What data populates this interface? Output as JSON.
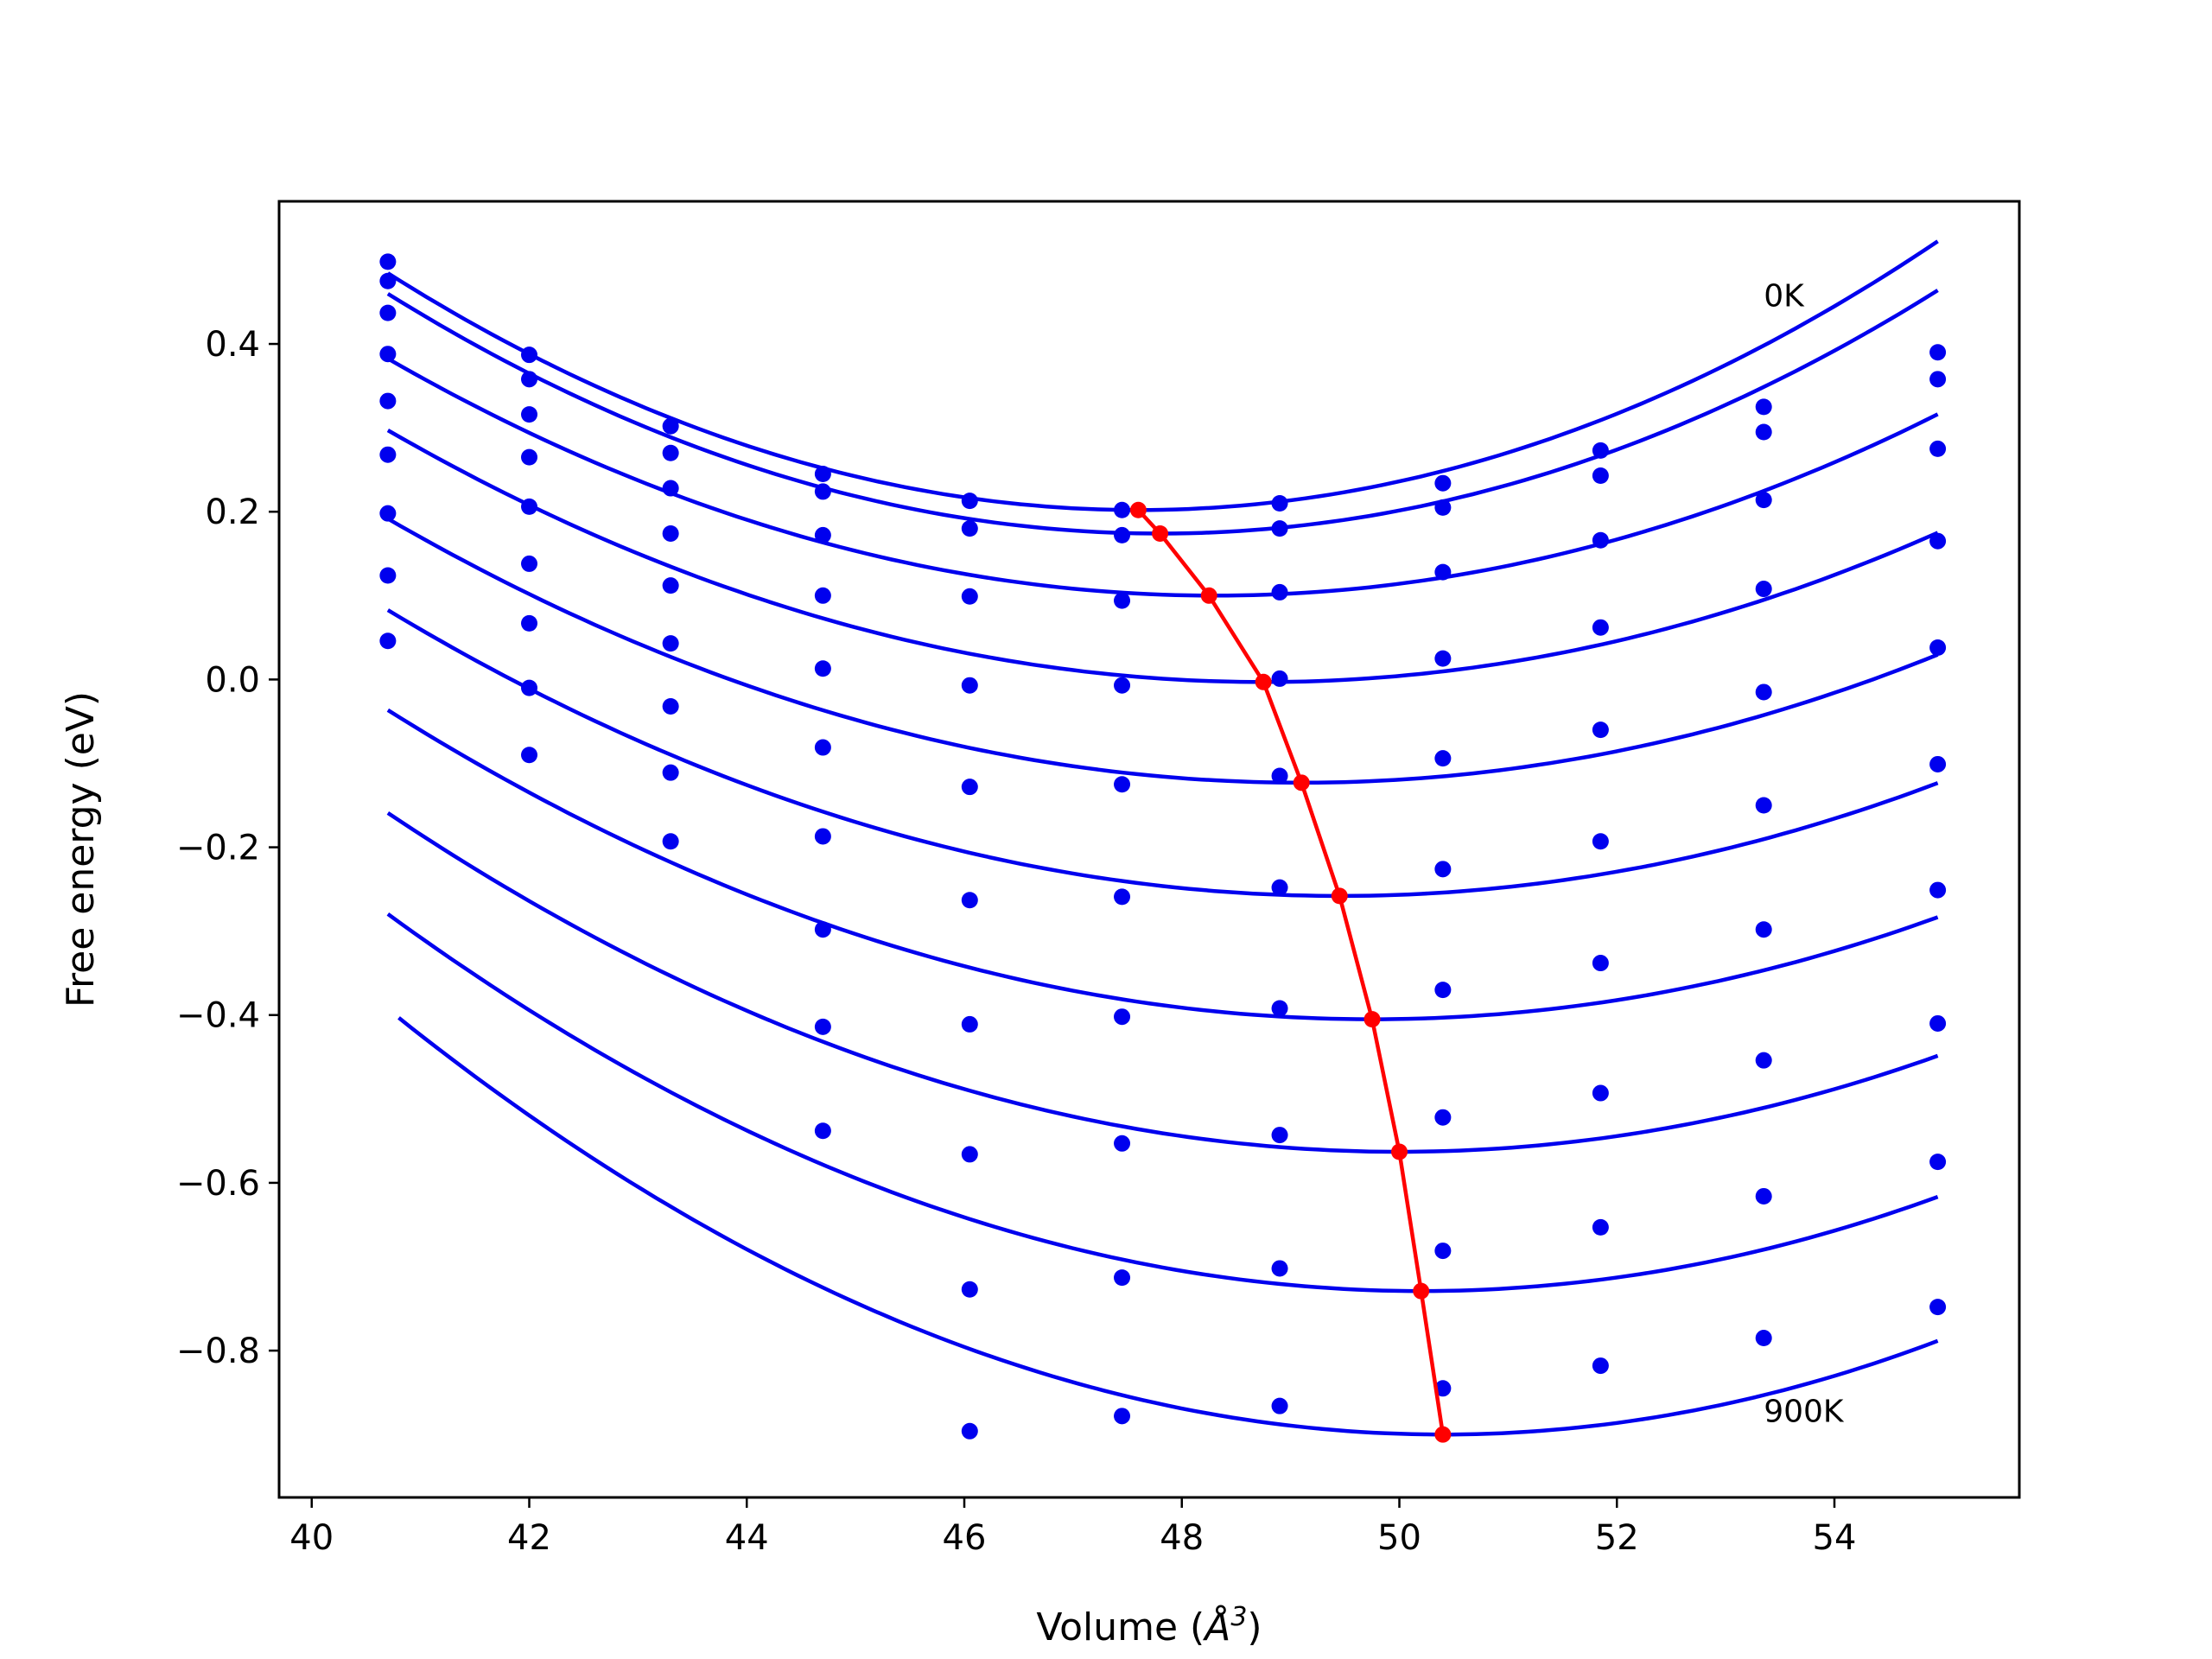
{
  "chart_data": {
    "type": "line",
    "xlabel_prefix": "Volume (",
    "xlabel_unit": "Å",
    "xlabel_exp": "3",
    "xlabel_suffix": ")",
    "ylabel": "Free energy (eV)",
    "xlim": [
      39.7,
      55.7
    ],
    "ylim": [
      -0.975,
      0.57
    ],
    "xticks": [
      40,
      42,
      44,
      46,
      48,
      50,
      52,
      54
    ],
    "yticks": [
      -0.8,
      -0.6,
      -0.4,
      -0.2,
      0.0,
      0.2,
      0.4
    ],
    "ytick_labels": [
      "−0.8",
      "−0.6",
      "−0.4",
      "−0.2",
      "0.0",
      "0.2",
      "0.4"
    ],
    "grid": false,
    "curve_color": "#0000ee",
    "equilibrium_color": "#ff0000",
    "annotations": [
      {
        "text": "0K",
        "x": 53.35,
        "y": 0.445
      },
      {
        "text": "900K",
        "x": 53.35,
        "y": -0.885
      }
    ],
    "sample_volumes": [
      40.7,
      42.0,
      43.3,
      44.7,
      46.05,
      47.45,
      48.9,
      50.4,
      51.85,
      53.35,
      54.95
    ],
    "series": [
      {
        "points": [
          0.498,
          0.387,
          0.302,
          0.245,
          0.213,
          0.202,
          0.21,
          0.234,
          0.273,
          0.325,
          0.39
        ],
        "fit": {
          "vmin": 40.7,
          "vmax": 54.95,
          "a": 0.00593,
          "v0": 47.6,
          "e0": 0.202
        }
      },
      {
        "points": [
          0.475,
          0.358,
          0.27,
          0.224,
          0.18,
          0.172,
          0.18,
          0.205,
          0.243,
          0.295,
          0.358
        ],
        "fit": {
          "vmin": 40.7,
          "vmax": 54.95,
          "a": 0.00567,
          "v0": 47.8,
          "e0": 0.174
        }
      },
      {
        "points": [
          0.437,
          0.316,
          0.228,
          0.172,
          0.099,
          0.094,
          0.104,
          0.128,
          0.166,
          0.214,
          0.275
        ],
        "fit": {
          "vmin": 40.7,
          "vmax": 54.95,
          "a": 0.00489,
          "v0": 48.3,
          "e0": 0.1
        }
      },
      {
        "points": [
          0.388,
          0.265,
          0.174,
          0.1,
          -0.007,
          -0.007,
          0.001,
          0.025,
          0.062,
          0.108,
          0.165
        ],
        "fit": {
          "vmin": 40.7,
          "vmax": 54.95,
          "a": 0.00463,
          "v0": 48.75,
          "e0": -0.003
        }
      },
      {
        "points": [
          0.332,
          0.206,
          0.112,
          0.013,
          -0.128,
          -0.125,
          -0.115,
          -0.094,
          -0.06,
          -0.015,
          0.038
        ],
        "fit": {
          "vmin": 40.7,
          "vmax": 54.95,
          "a": 0.00446,
          "v0": 49.1,
          "e0": -0.123
        }
      },
      {
        "points": [
          0.268,
          0.138,
          0.043,
          -0.081,
          -0.263,
          -0.259,
          -0.248,
          -0.226,
          -0.193,
          -0.15,
          -0.101
        ],
        "fit": {
          "vmin": 40.7,
          "vmax": 54.95,
          "a": 0.00445,
          "v0": 49.45,
          "e0": -0.258
        }
      },
      {
        "points": [
          0.198,
          0.067,
          -0.032,
          -0.187,
          -0.411,
          -0.402,
          -0.392,
          -0.37,
          -0.338,
          -0.298,
          -0.251
        ],
        "fit": {
          "vmin": 40.7,
          "vmax": 54.95,
          "a": 0.0045,
          "v0": 49.75,
          "e0": -0.405
        }
      },
      {
        "points": [
          0.124,
          -0.01,
          -0.111,
          -0.298,
          -0.566,
          -0.553,
          -0.543,
          -0.522,
          -0.493,
          -0.454,
          -0.41
        ],
        "fit": {
          "vmin": 40.7,
          "vmax": 54.95,
          "a": 0.00467,
          "v0": 50.0,
          "e0": -0.563
        }
      },
      {
        "points": [
          0.046,
          -0.09,
          -0.193,
          -0.414,
          -0.727,
          -0.713,
          -0.702,
          -0.681,
          -0.653,
          -0.616,
          -0.575
        ],
        "fit": {
          "vmin": 40.7,
          "vmax": 54.95,
          "a": 0.00498,
          "v0": 50.2,
          "e0": -0.729
        }
      },
      {
        "points": [
          null,
          null,
          null,
          -0.538,
          -0.896,
          -0.878,
          -0.866,
          -0.845,
          -0.818,
          -0.785,
          -0.748
        ],
        "fit": {
          "vmin": 40.8,
          "vmax": 54.95,
          "a": 0.00539,
          "v0": 50.4,
          "e0": -0.9
        }
      }
    ],
    "equilibrium": {
      "x": [
        47.6,
        47.8,
        48.25,
        48.75,
        49.1,
        49.45,
        49.75,
        50.0,
        50.2,
        50.4
      ],
      "y": [
        0.202,
        0.174,
        0.1,
        -0.003,
        -0.123,
        -0.258,
        -0.405,
        -0.563,
        -0.729,
        -0.9
      ]
    }
  }
}
